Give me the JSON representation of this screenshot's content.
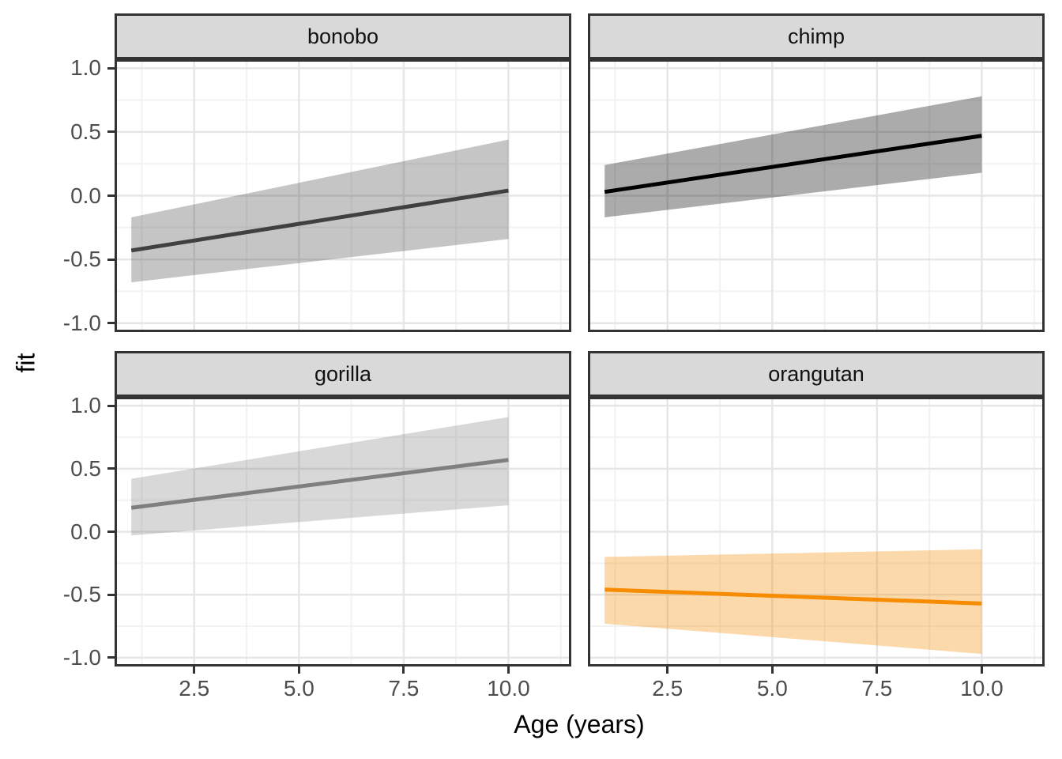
{
  "axes": {
    "x_title": "Age (years)",
    "y_title": "fit",
    "x_tick_labels": [
      "2.5",
      "5.0",
      "7.5",
      "10.0"
    ],
    "y_tick_labels": [
      "1.0",
      "0.5",
      "0.0",
      "-0.5",
      "-1.0"
    ]
  },
  "chart_data": {
    "type": "line",
    "title": "",
    "xlabel": "Age (years)",
    "ylabel": "fit",
    "facet_labels": [
      "bonobo",
      "chimp",
      "gorilla",
      "orangutan"
    ],
    "x_range": [
      0.6,
      11.5
    ],
    "y_range": [
      -1.07,
      1.07
    ],
    "x_ticks": [
      2.5,
      5.0,
      7.5,
      10.0
    ],
    "y_ticks": [
      1.0,
      0.5,
      0.0,
      -0.5,
      -1.0
    ],
    "x_minor_ticks": [
      1.25,
      3.75,
      6.25,
      8.75,
      11.25
    ],
    "y_minor_ticks": [
      -0.75,
      -0.25,
      0.25,
      0.75
    ],
    "grid": true,
    "legend": "none",
    "facets": [
      {
        "label": "bonobo",
        "line_color": "#404040",
        "ribbon_color": "#404040",
        "ribbon_alpha": 0.3,
        "x": [
          1,
          10
        ],
        "fit": [
          -0.43,
          0.04
        ],
        "ci_upper": [
          -0.17,
          0.44
        ],
        "ci_lower": [
          -0.68,
          -0.34
        ]
      },
      {
        "label": "chimp",
        "line_color": "#000000",
        "ribbon_color": "#000000",
        "ribbon_alpha": 0.33,
        "x": [
          1,
          10
        ],
        "fit": [
          0.03,
          0.47
        ],
        "ci_upper": [
          0.24,
          0.78
        ],
        "ci_lower": [
          -0.17,
          0.18
        ]
      },
      {
        "label": "gorilla",
        "line_color": "#7f7f7f",
        "ribbon_color": "#7f7f7f",
        "ribbon_alpha": 0.3,
        "x": [
          1,
          10
        ],
        "fit": [
          0.19,
          0.57
        ],
        "ci_upper": [
          0.42,
          0.91
        ],
        "ci_lower": [
          -0.03,
          0.21
        ]
      },
      {
        "label": "orangutan",
        "line_color": "#f78c00",
        "ribbon_color": "#f78c00",
        "ribbon_alpha": 0.33,
        "x": [
          1,
          10
        ],
        "fit": [
          -0.46,
          -0.57
        ],
        "ci_upper": [
          -0.2,
          -0.14
        ],
        "ci_lower": [
          -0.73,
          -0.97
        ]
      }
    ]
  },
  "style": {
    "strip_fill": "#d9d9d9",
    "panel_border": "#333333",
    "grid_major": "#e6e6e6",
    "grid_minor": "#f2f2f2",
    "tick_mark_color": "#333333",
    "tick_label_color": "#4d4d4d",
    "axis_title_color": "#000000"
  }
}
